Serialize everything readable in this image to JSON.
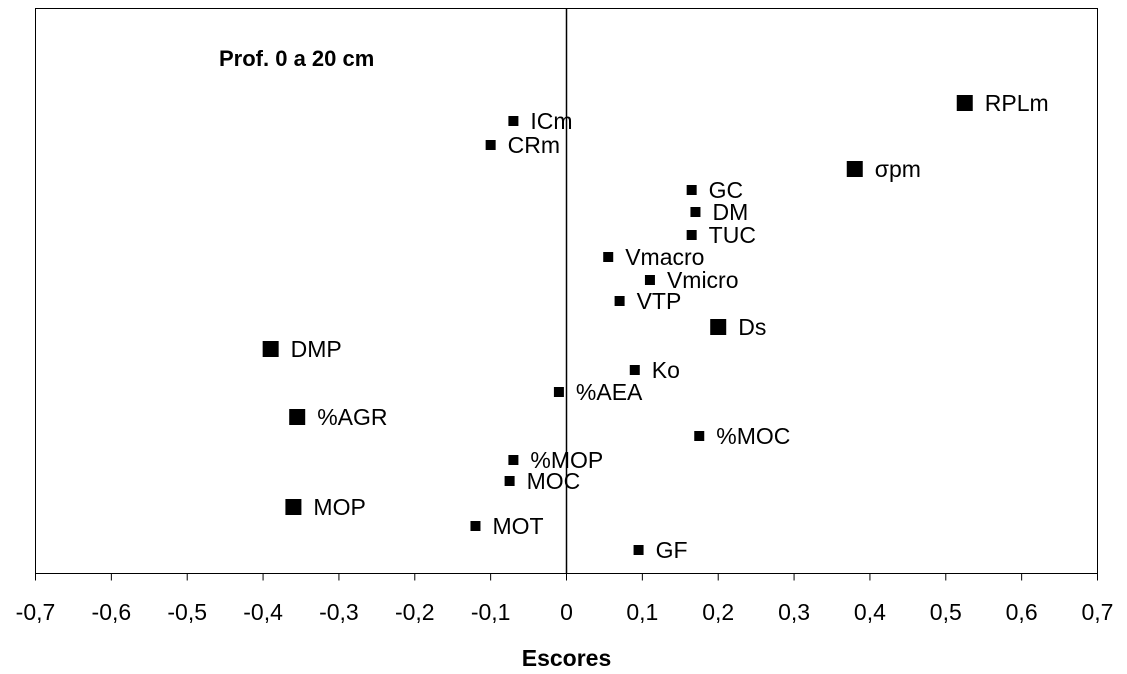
{
  "chart_data": {
    "type": "scatter",
    "title": "Prof. 0 a 20 cm",
    "xlabel": "Escores",
    "ylabel": "",
    "xlim": [
      -0.7,
      0.7
    ],
    "xticks": [
      "-0,7",
      "-0,6",
      "-0,5",
      "-0,4",
      "-0,3",
      "-0,2",
      "-0,1",
      "0",
      "0,1",
      "0,2",
      "0,3",
      "0,4",
      "0,5",
      "0,6",
      "0,7"
    ],
    "grid": false,
    "legend": "none",
    "marker_color": "#000000",
    "points": [
      {
        "label": "RPLm",
        "x": 0.525,
        "rank": 1,
        "marker": "large"
      },
      {
        "label": "ICm",
        "x": -0.07,
        "rank": 2,
        "marker": "small"
      },
      {
        "label": "CRm",
        "x": -0.1,
        "rank": 3,
        "marker": "small"
      },
      {
        "label": "σpm",
        "x": 0.38,
        "rank": 4,
        "marker": "large"
      },
      {
        "label": "GC",
        "x": 0.165,
        "rank": 5,
        "marker": "small"
      },
      {
        "label": "DM",
        "x": 0.17,
        "rank": 6,
        "marker": "small"
      },
      {
        "label": "TUC",
        "x": 0.165,
        "rank": 7,
        "marker": "small"
      },
      {
        "label": "Vmacro",
        "x": 0.055,
        "rank": 8,
        "marker": "small"
      },
      {
        "label": "Vmicro",
        "x": 0.11,
        "rank": 9,
        "marker": "small"
      },
      {
        "label": "VTP",
        "x": 0.07,
        "rank": 10,
        "marker": "small"
      },
      {
        "label": "Ds",
        "x": 0.2,
        "rank": 11,
        "marker": "large"
      },
      {
        "label": "DMP",
        "x": -0.39,
        "rank": 12,
        "marker": "large"
      },
      {
        "label": "Ko",
        "x": 0.09,
        "rank": 13,
        "marker": "small"
      },
      {
        "label": "%AEA",
        "x": -0.01,
        "rank": 14,
        "marker": "small"
      },
      {
        "label": "%AGR",
        "x": -0.355,
        "rank": 15,
        "marker": "large"
      },
      {
        "label": "%MOC",
        "x": 0.175,
        "rank": 16,
        "marker": "small"
      },
      {
        "label": "%MOP",
        "x": -0.07,
        "rank": 17,
        "marker": "small"
      },
      {
        "label": "MOC",
        "x": -0.075,
        "rank": 18,
        "marker": "small"
      },
      {
        "label": "MOP",
        "x": -0.36,
        "rank": 19,
        "marker": "large"
      },
      {
        "label": "MOT",
        "x": -0.12,
        "rank": 20,
        "marker": "small"
      },
      {
        "label": "GF",
        "x": 0.095,
        "rank": 21,
        "marker": "small"
      }
    ]
  }
}
